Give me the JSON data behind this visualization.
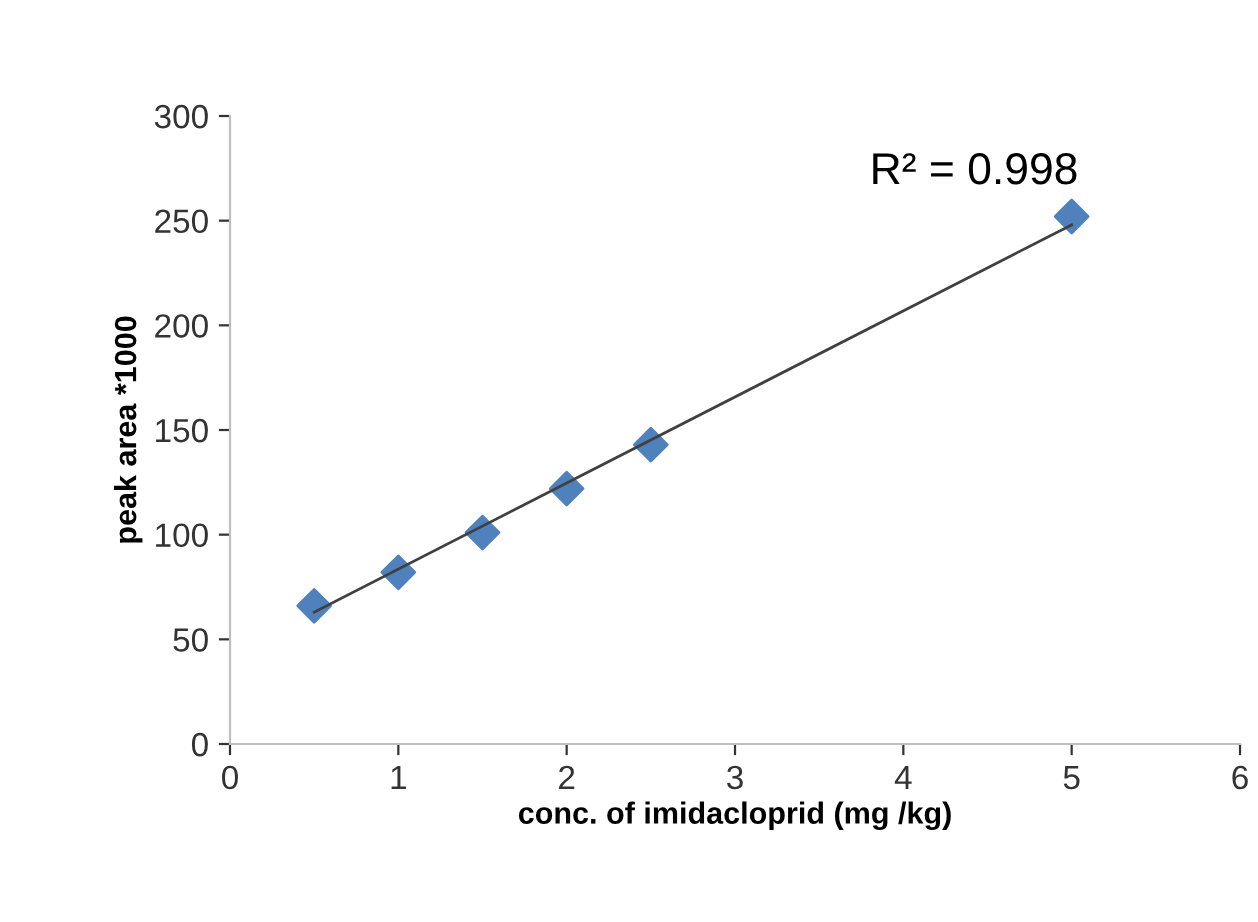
{
  "chart_data": {
    "type": "scatter",
    "xlabel": "conc. of imidacloprid (mg /kg)",
    "ylabel": "peak area *1000",
    "x": [
      0.5,
      1,
      1.5,
      2,
      2.5,
      5
    ],
    "series": [
      {
        "color": "#4f81bd",
        "values": [
          66,
          82,
          101,
          122,
          143,
          252
        ],
        "marker": "diamond"
      },
      {
        "type": "line",
        "color": "#404040",
        "x": [
          0.5,
          5
        ],
        "values": [
          63,
          248
        ],
        "marker": "none",
        "line_style": "solid"
      }
    ],
    "annotations": [
      "R² = 0.998"
    ],
    "xlim": [
      0,
      6
    ],
    "xticks": [
      0,
      1,
      2,
      3,
      4,
      5,
      6
    ],
    "ylim": [
      0,
      300
    ],
    "yticks": [
      0,
      50,
      100,
      150,
      200,
      250,
      300
    ],
    "grid": false,
    "legend": false
  }
}
